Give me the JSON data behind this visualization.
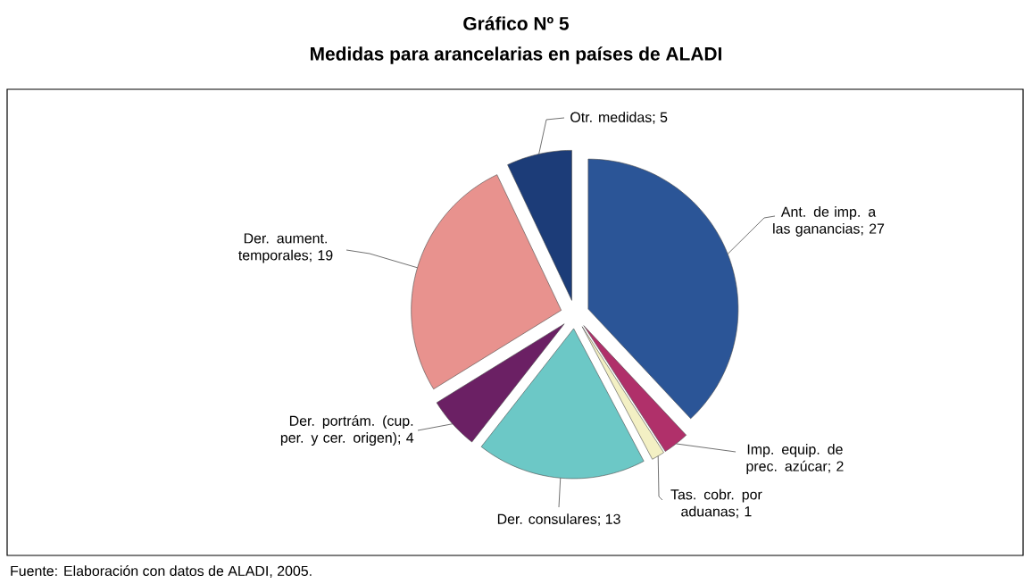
{
  "chart_data": {
    "type": "pie",
    "title": "Gráfico Nº 5",
    "subtitle": "Medidas para arancelarias en países de ALADI",
    "categories": [
      "Otr. medidas",
      "Ant. de imp. a las ganancias",
      "Imp. equip. de prec. azúcar",
      "Tas. cobr. por aduanas",
      "Der. consulares",
      "Der. portrám. (cup. per. y cer. origen)",
      "Der. aument. temporales"
    ],
    "values": [
      5,
      27,
      2,
      1,
      13,
      4,
      19
    ],
    "colors": [
      "#1c3c78",
      "#2b5597",
      "#b0306a",
      "#f3f0c4",
      "#6cc8c6",
      "#6b2064",
      "#e8928e"
    ],
    "value_labels": [
      "; 5",
      "; 27",
      "; 2",
      "; 1",
      "; 13",
      "; 4",
      "; 19"
    ],
    "annotations": [
      "Fuente: Elaboración con datos de ALADI, 2005."
    ]
  }
}
